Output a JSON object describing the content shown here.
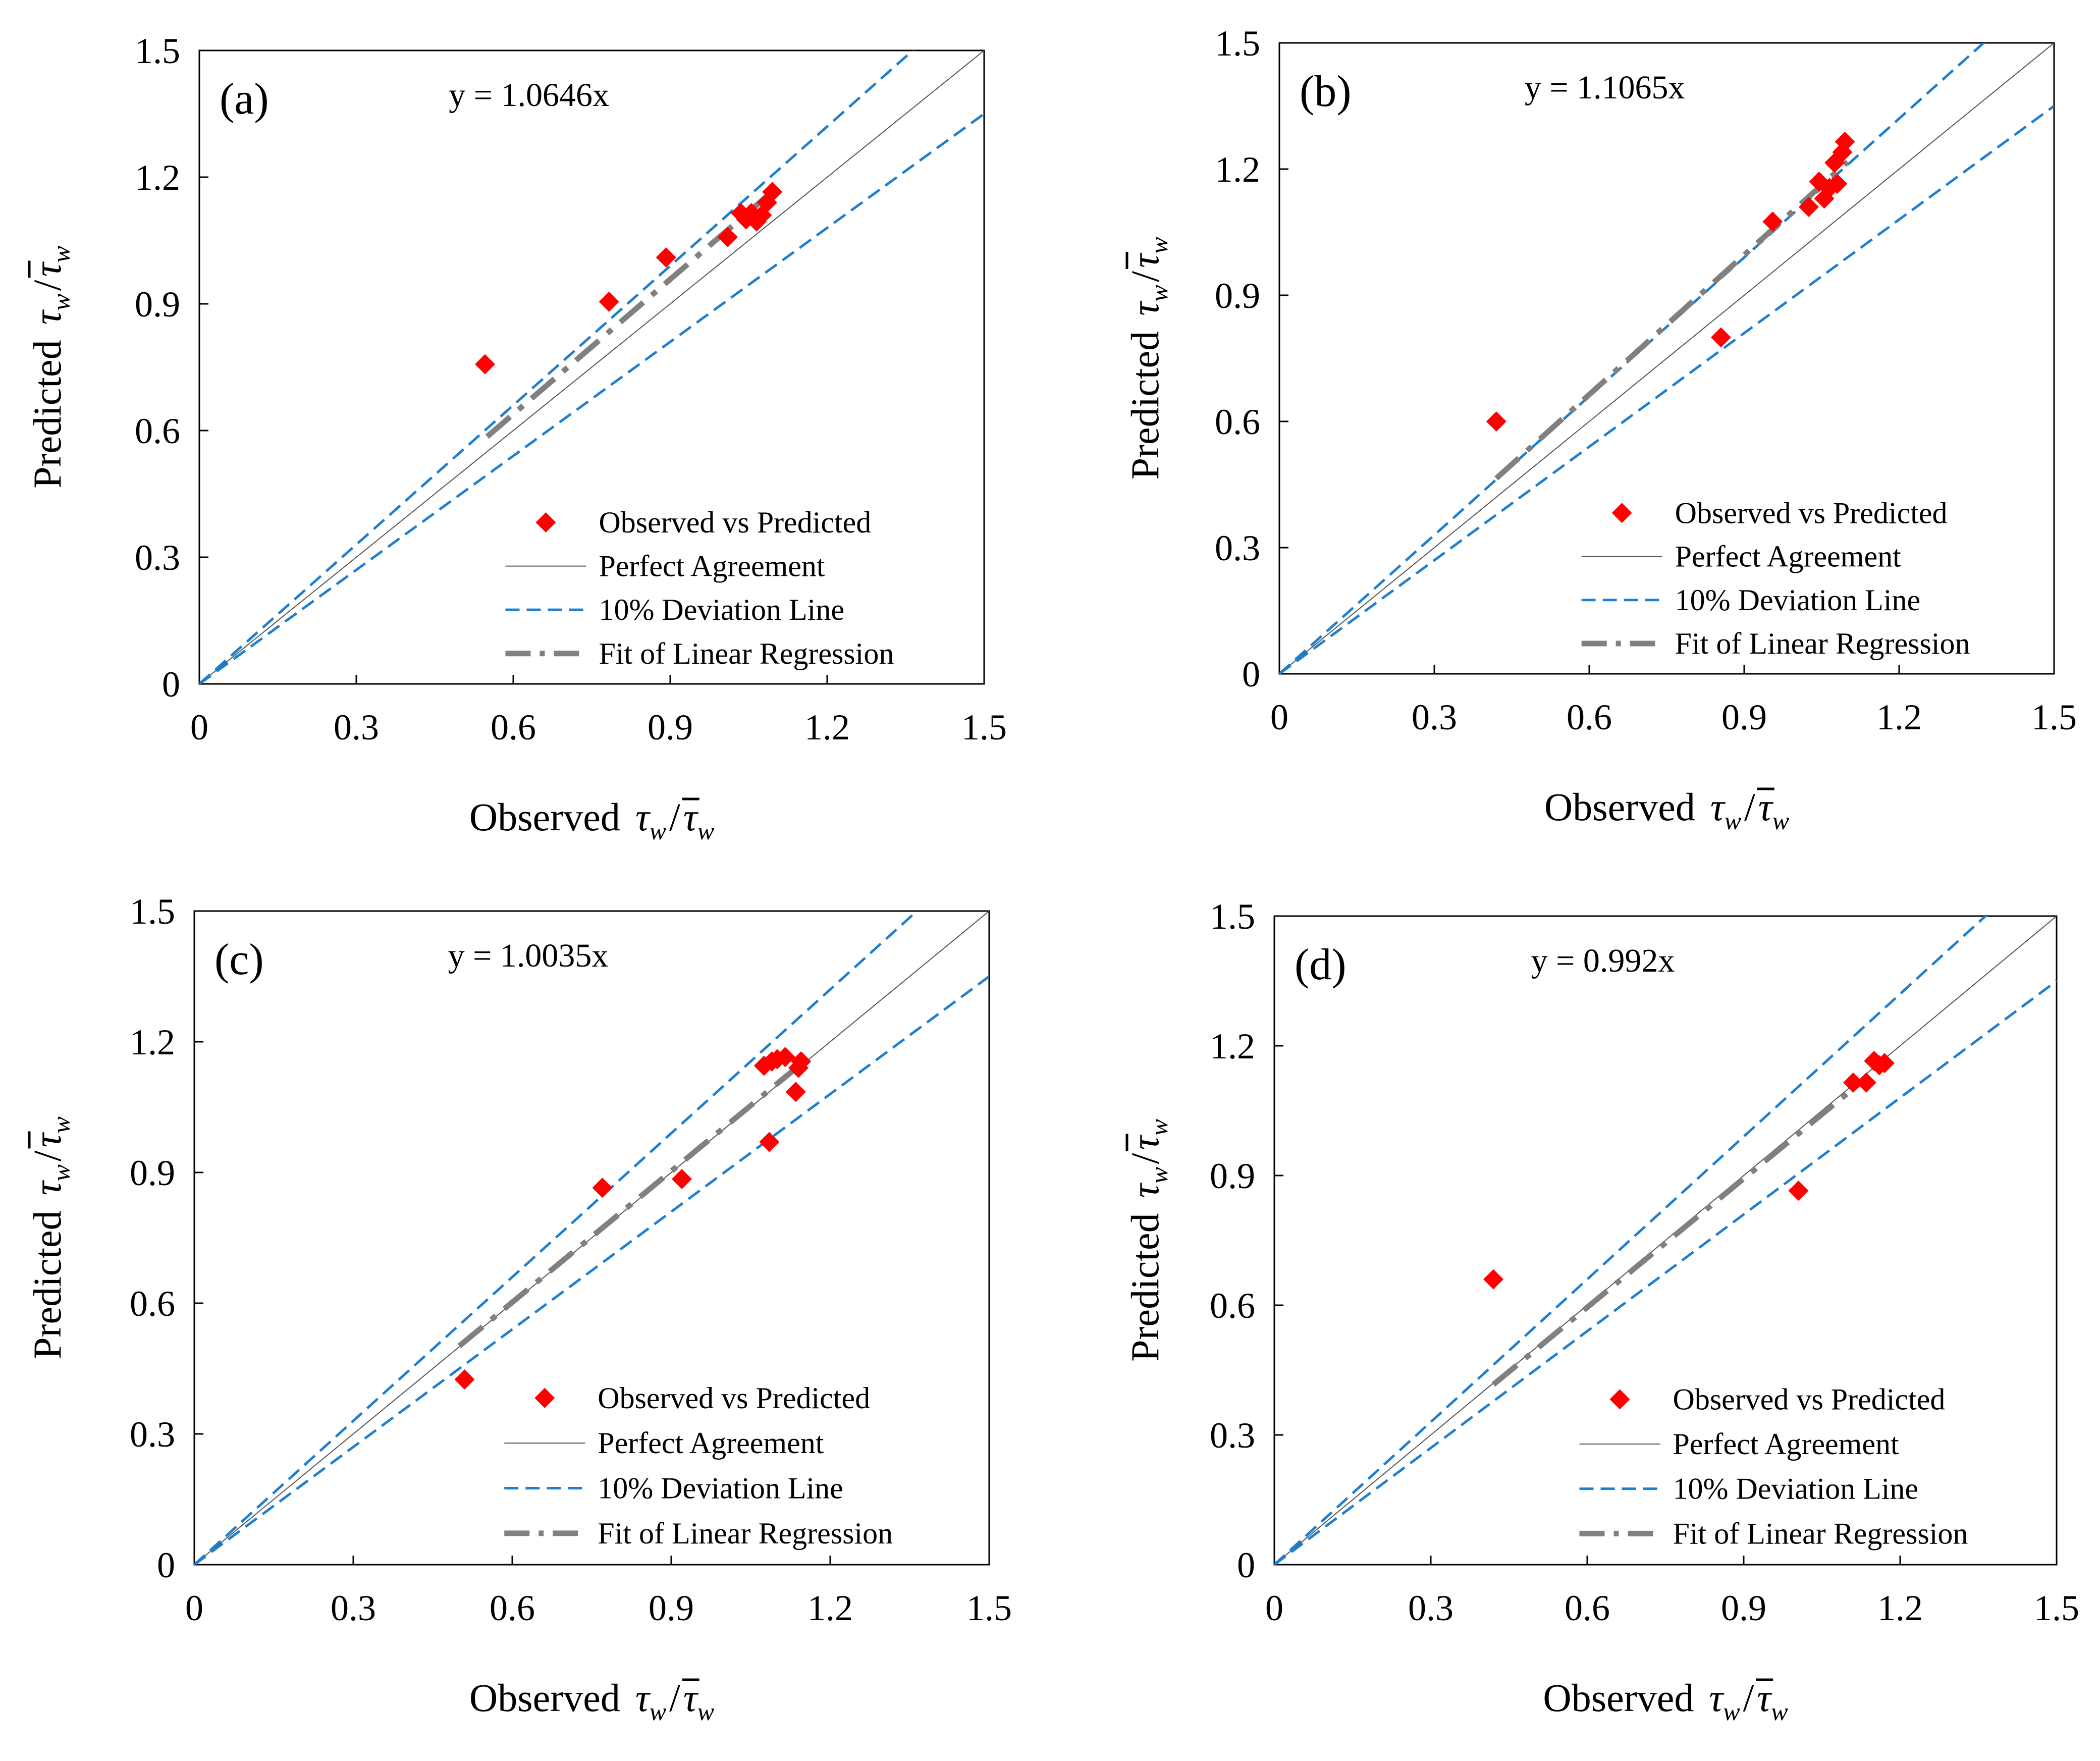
{
  "colors": {
    "marker": "#ff0000",
    "perfect_line": "#555555",
    "deviation_line": "#1f7fcf",
    "regression_line": "#808080",
    "axis": "#000000"
  },
  "axis_text": {
    "x_word": "Observed",
    "y_word": "Predicted",
    "tau": "τ",
    "sub_w": "w",
    "slash": "/"
  },
  "legend": {
    "observed": "Observed vs Predicted",
    "perfect": "Perfect Agreement",
    "deviation": "10% Deviation Line",
    "regression": "Fit of Linear Regression"
  },
  "chart_data": [
    {
      "type": "scatter",
      "panel": "(a)",
      "equation": "y = 1.0646x",
      "slope": 1.0646,
      "xlim": [
        0,
        1.5
      ],
      "ylim": [
        0,
        1.5
      ],
      "xticks": [
        "0",
        "0.3",
        "0.6",
        "0.9",
        "1.2",
        "1.5"
      ],
      "yticks": [
        "0",
        "0.3",
        "0.6",
        "0.9",
        "1.2",
        "1.5"
      ],
      "fit_range": [
        0.55,
        1.1
      ],
      "x": [
        0.546,
        0.783,
        0.892,
        1.01,
        1.035,
        1.045,
        1.055,
        1.065,
        1.075,
        1.085,
        1.095
      ],
      "y": [
        0.757,
        0.905,
        1.01,
        1.058,
        1.115,
        1.1,
        1.115,
        1.095,
        1.11,
        1.14,
        1.165
      ]
    },
    {
      "type": "scatter",
      "panel": "(b)",
      "equation": "y = 1.1065x",
      "slope": 1.1065,
      "xlim": [
        0,
        1.5
      ],
      "ylim": [
        0,
        1.5
      ],
      "xticks": [
        "0",
        "0.3",
        "0.6",
        "0.9",
        "1.2",
        "1.5"
      ],
      "yticks": [
        "0",
        "0.3",
        "0.6",
        "0.9",
        "1.2",
        "1.5"
      ],
      "fit_range": [
        0.42,
        1.1
      ],
      "x": [
        0.42,
        0.855,
        0.955,
        1.025,
        1.045,
        1.055,
        1.065,
        1.075,
        1.08,
        1.09,
        1.095
      ],
      "y": [
        0.6,
        0.8,
        1.075,
        1.11,
        1.17,
        1.13,
        1.155,
        1.215,
        1.165,
        1.24,
        1.265
      ]
    },
    {
      "type": "scatter",
      "panel": "(c)",
      "equation": "y = 1.0035x",
      "slope": 1.0035,
      "xlim": [
        0,
        1.5
      ],
      "ylim": [
        0,
        1.5
      ],
      "xticks": [
        "0",
        "0.3",
        "0.6",
        "0.9",
        "1.2",
        "1.5"
      ],
      "yticks": [
        "0",
        "0.3",
        "0.6",
        "0.9",
        "1.2",
        "1.5"
      ],
      "fit_range": [
        0.5,
        1.14
      ],
      "x": [
        0.51,
        0.77,
        0.92,
        1.085,
        1.075,
        1.09,
        1.1,
        1.115,
        1.135,
        1.145,
        1.14
      ],
      "y": [
        0.425,
        0.865,
        0.885,
        0.97,
        1.145,
        1.155,
        1.16,
        1.165,
        1.085,
        1.155,
        1.14
      ]
    },
    {
      "type": "scatter",
      "panel": "(d)",
      "equation": "y = 0.992x",
      "slope": 0.992,
      "xlim": [
        0,
        1.5
      ],
      "ylim": [
        0,
        1.5
      ],
      "xticks": [
        "0",
        "0.3",
        "0.6",
        "0.9",
        "1.2",
        "1.5"
      ],
      "yticks": [
        "0",
        "0.3",
        "0.6",
        "0.9",
        "1.2",
        "1.5"
      ],
      "fit_range": [
        0.42,
        1.12
      ],
      "x": [
        0.42,
        1.005,
        1.11,
        1.135,
        1.15,
        1.16,
        1.17
      ],
      "y": [
        0.66,
        0.865,
        1.115,
        1.115,
        1.165,
        1.155,
        1.16
      ]
    }
  ]
}
